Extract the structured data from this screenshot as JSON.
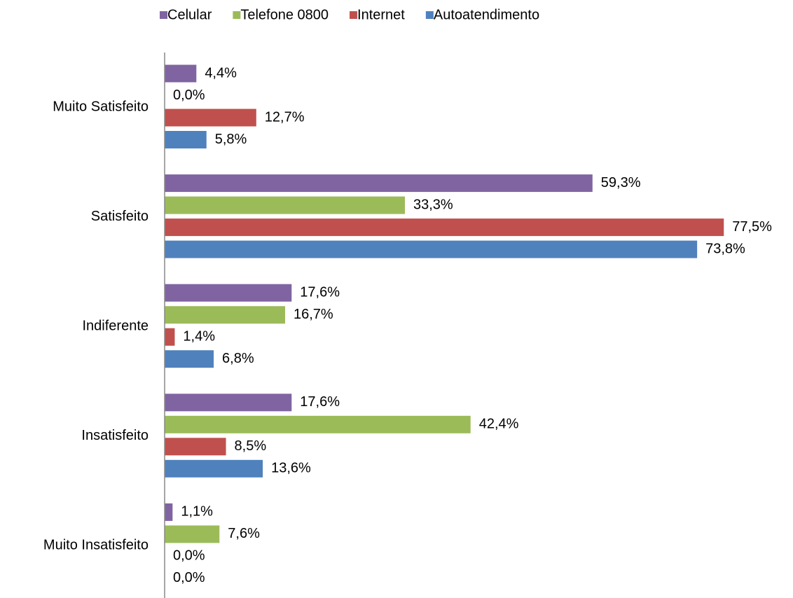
{
  "chart_data": {
    "type": "bar",
    "orientation": "horizontal",
    "categories": [
      "Muito Satisfeito",
      "Satisfeito",
      "Indiferente",
      "Insatisfeito",
      "Muito Insatisfeito"
    ],
    "series": [
      {
        "name": "Celular",
        "color": "#8064a2",
        "values": [
          4.4,
          59.3,
          17.6,
          17.6,
          1.1
        ],
        "value_labels": [
          "4,4%",
          "59,3%",
          "17,6%",
          "17,6%",
          "1,1%"
        ]
      },
      {
        "name": "Telefone 0800",
        "color": "#9bbb59",
        "values": [
          0.0,
          33.3,
          16.7,
          42.4,
          7.6
        ],
        "value_labels": [
          "0,0%",
          "33,3%",
          "16,7%",
          "42,4%",
          "7,6%"
        ]
      },
      {
        "name": "Internet",
        "color": "#c0504d",
        "values": [
          12.7,
          77.5,
          1.4,
          8.5,
          0.0
        ],
        "value_labels": [
          "12,7%",
          "77,5%",
          "1,4%",
          "8,5%",
          "0,0%"
        ]
      },
      {
        "name": "Autoatendimento",
        "color": "#4f81bd",
        "values": [
          5.8,
          73.8,
          6.8,
          13.6,
          0.0
        ],
        "value_labels": [
          "5,8%",
          "73,8%",
          "6,8%",
          "13,6%",
          "0,0%"
        ]
      }
    ],
    "legend": "top"
  }
}
